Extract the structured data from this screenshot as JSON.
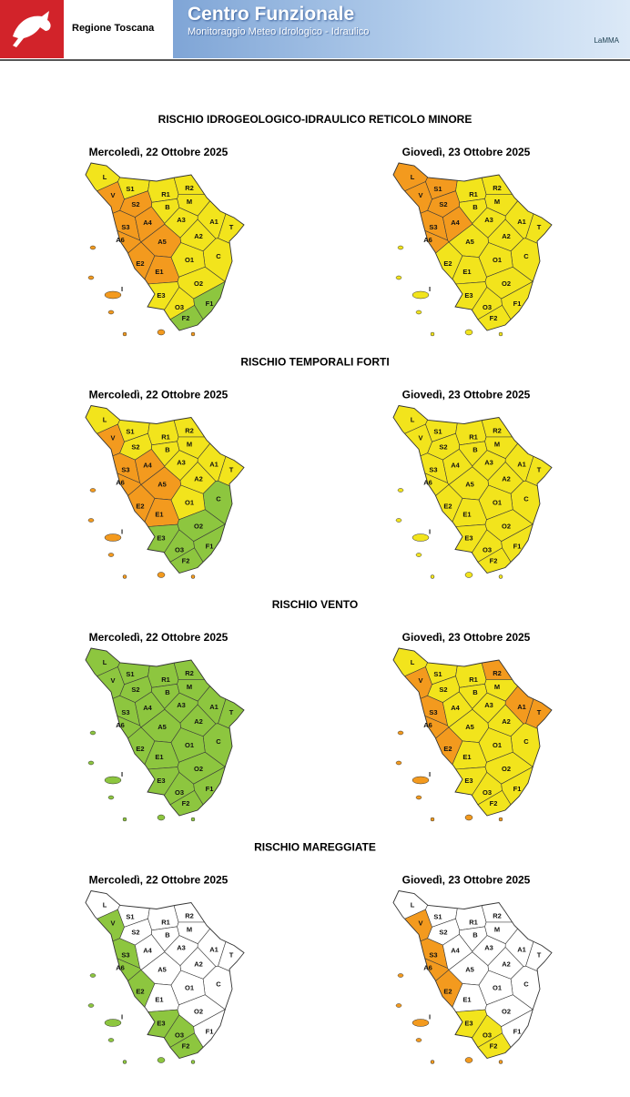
{
  "header": {
    "region": "Regione Toscana",
    "title": "Centro Funzionale",
    "subtitle": "Monitoraggio Meteo Idrologico - Idraulico",
    "partner": "LaMMA"
  },
  "zones": [
    "L",
    "V",
    "S1",
    "S2",
    "S3",
    "R1",
    "R2",
    "B",
    "M",
    "A1",
    "A2",
    "A3",
    "A4",
    "A5",
    "A6",
    "T",
    "C",
    "E1",
    "E2",
    "E3",
    "I",
    "O1",
    "O2",
    "O3",
    "F1",
    "F2"
  ],
  "sections": [
    {
      "title": "RISCHIO IDROGEOLOGICO-IDRAULICO RETICOLO MINORE",
      "maps": [
        {
          "date": "Mercoledì, 22 Ottobre 2025",
          "colors": [
            "#f2e41c",
            "#f39a1e",
            "#f2e41c",
            "#f39a1e",
            "#f39a1e",
            "#f2e41c",
            "#f2e41c",
            "#f2e41c",
            "#f2e41c",
            "#f2e41c",
            "#f2e41c",
            "#f2e41c",
            "#f39a1e",
            "#f39a1e",
            "#f39a1e",
            "#f2e41c",
            "#f2e41c",
            "#f39a1e",
            "#f39a1e",
            "#f2e41c",
            "#f39a1e",
            "#f2e41c",
            "#f2e41c",
            "#f2e41c",
            "#8dc63f",
            "#8dc63f"
          ]
        },
        {
          "date": "Giovedì, 23 Ottobre 2025",
          "colors": [
            "#f39a1e",
            "#f39a1e",
            "#f39a1e",
            "#f39a1e",
            "#f39a1e",
            "#f2e41c",
            "#f2e41c",
            "#f2e41c",
            "#f2e41c",
            "#f2e41c",
            "#f2e41c",
            "#f2e41c",
            "#f39a1e",
            "#f2e41c",
            "#f39a1e",
            "#f2e41c",
            "#f2e41c",
            "#f2e41c",
            "#f2e41c",
            "#f2e41c",
            "#f2e41c",
            "#f2e41c",
            "#f2e41c",
            "#f2e41c",
            "#f2e41c",
            "#f2e41c"
          ]
        }
      ]
    },
    {
      "title": "RISCHIO TEMPORALI FORTI",
      "maps": [
        {
          "date": "Mercoledì, 22 Ottobre 2025",
          "colors": [
            "#f2e41c",
            "#f39a1e",
            "#f2e41c",
            "#f2e41c",
            "#f39a1e",
            "#f2e41c",
            "#f2e41c",
            "#f2e41c",
            "#f2e41c",
            "#f2e41c",
            "#f2e41c",
            "#f2e41c",
            "#f39a1e",
            "#f39a1e",
            "#f39a1e",
            "#f2e41c",
            "#8dc63f",
            "#f39a1e",
            "#f39a1e",
            "#8dc63f",
            "#f39a1e",
            "#f2e41c",
            "#8dc63f",
            "#8dc63f",
            "#8dc63f",
            "#8dc63f"
          ]
        },
        {
          "date": "Giovedì, 23 Ottobre 2025",
          "colors": [
            "#f2e41c",
            "#f2e41c",
            "#f2e41c",
            "#f2e41c",
            "#f2e41c",
            "#f2e41c",
            "#f2e41c",
            "#f2e41c",
            "#f2e41c",
            "#f2e41c",
            "#f2e41c",
            "#f2e41c",
            "#f2e41c",
            "#f2e41c",
            "#f2e41c",
            "#f2e41c",
            "#f2e41c",
            "#f2e41c",
            "#f2e41c",
            "#f2e41c",
            "#f2e41c",
            "#f2e41c",
            "#f2e41c",
            "#f2e41c",
            "#f2e41c",
            "#f2e41c"
          ]
        }
      ]
    },
    {
      "title": "RISCHIO VENTO",
      "maps": [
        {
          "date": "Mercoledì, 22 Ottobre 2025",
          "colors": [
            "#8dc63f",
            "#8dc63f",
            "#8dc63f",
            "#8dc63f",
            "#8dc63f",
            "#8dc63f",
            "#8dc63f",
            "#8dc63f",
            "#8dc63f",
            "#8dc63f",
            "#8dc63f",
            "#8dc63f",
            "#8dc63f",
            "#8dc63f",
            "#8dc63f",
            "#8dc63f",
            "#8dc63f",
            "#8dc63f",
            "#8dc63f",
            "#8dc63f",
            "#8dc63f",
            "#8dc63f",
            "#8dc63f",
            "#8dc63f",
            "#8dc63f",
            "#8dc63f"
          ]
        },
        {
          "date": "Giovedì, 23 Ottobre 2025",
          "colors": [
            "#f2e41c",
            "#f39a1e",
            "#f2e41c",
            "#f2e41c",
            "#f39a1e",
            "#f2e41c",
            "#f39a1e",
            "#f2e41c",
            "#f2e41c",
            "#f39a1e",
            "#f2e41c",
            "#f2e41c",
            "#f2e41c",
            "#f2e41c",
            "#f39a1e",
            "#f39a1e",
            "#f2e41c",
            "#f2e41c",
            "#f39a1e",
            "#f2e41c",
            "#f39a1e",
            "#f2e41c",
            "#f2e41c",
            "#f2e41c",
            "#f2e41c",
            "#f2e41c"
          ]
        }
      ]
    },
    {
      "title": "RISCHIO MAREGGIATE",
      "maps": [
        {
          "date": "Mercoledì, 22 Ottobre 2025",
          "colors": [
            "#ffffff",
            "#8dc63f",
            "#ffffff",
            "#ffffff",
            "#8dc63f",
            "#ffffff",
            "#ffffff",
            "#ffffff",
            "#ffffff",
            "#ffffff",
            "#ffffff",
            "#ffffff",
            "#ffffff",
            "#ffffff",
            "#8dc63f",
            "#ffffff",
            "#ffffff",
            "#ffffff",
            "#8dc63f",
            "#8dc63f",
            "#8dc63f",
            "#ffffff",
            "#ffffff",
            "#8dc63f",
            "#ffffff",
            "#8dc63f"
          ]
        },
        {
          "date": "Giovedì, 23 Ottobre 2025",
          "colors": [
            "#ffffff",
            "#f39a1e",
            "#ffffff",
            "#ffffff",
            "#f39a1e",
            "#ffffff",
            "#ffffff",
            "#ffffff",
            "#ffffff",
            "#ffffff",
            "#ffffff",
            "#ffffff",
            "#ffffff",
            "#ffffff",
            "#f39a1e",
            "#ffffff",
            "#ffffff",
            "#ffffff",
            "#f39a1e",
            "#f2e41c",
            "#f39a1e",
            "#ffffff",
            "#ffffff",
            "#f2e41c",
            "#ffffff",
            "#f2e41c"
          ]
        }
      ]
    }
  ]
}
